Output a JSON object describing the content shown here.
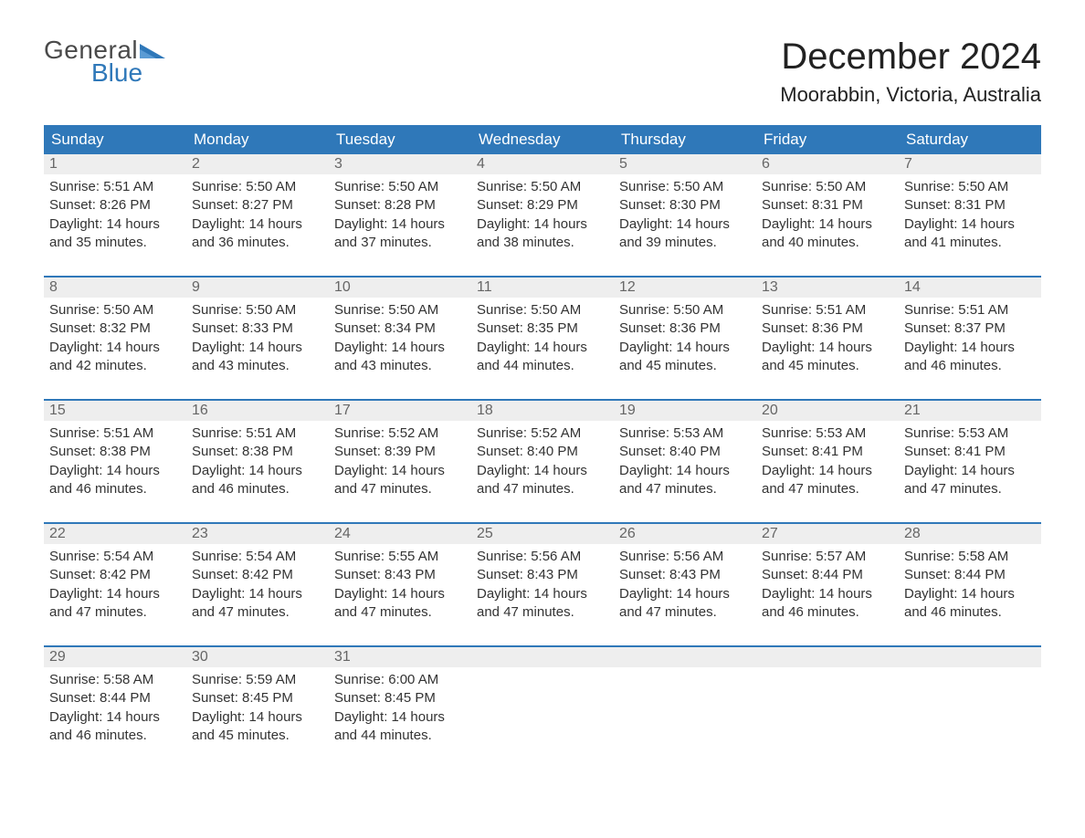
{
  "brand": {
    "line1": "General",
    "line2": "Blue",
    "accent_color": "#2f78b9"
  },
  "title": "December 2024",
  "location": "Moorabbin, Victoria, Australia",
  "colors": {
    "header_bg": "#2f78b9",
    "header_text": "#ffffff",
    "daynum_bg": "#eeeeee",
    "daynum_text": "#666666",
    "rule": "#2f78b9",
    "body_text": "#333333",
    "page_bg": "#ffffff"
  },
  "typography": {
    "title_fontsize": 40,
    "location_fontsize": 22,
    "header_fontsize": 17,
    "body_fontsize": 15,
    "font_family": "Arial"
  },
  "weekday_labels": [
    "Sunday",
    "Monday",
    "Tuesday",
    "Wednesday",
    "Thursday",
    "Friday",
    "Saturday"
  ],
  "labels": {
    "sunrise": "Sunrise:",
    "sunset": "Sunset:",
    "daylight": "Daylight:"
  },
  "weeks": [
    [
      {
        "n": "1",
        "sunrise": "5:51 AM",
        "sunset": "8:26 PM",
        "daylight": "14 hours and 35 minutes."
      },
      {
        "n": "2",
        "sunrise": "5:50 AM",
        "sunset": "8:27 PM",
        "daylight": "14 hours and 36 minutes."
      },
      {
        "n": "3",
        "sunrise": "5:50 AM",
        "sunset": "8:28 PM",
        "daylight": "14 hours and 37 minutes."
      },
      {
        "n": "4",
        "sunrise": "5:50 AM",
        "sunset": "8:29 PM",
        "daylight": "14 hours and 38 minutes."
      },
      {
        "n": "5",
        "sunrise": "5:50 AM",
        "sunset": "8:30 PM",
        "daylight": "14 hours and 39 minutes."
      },
      {
        "n": "6",
        "sunrise": "5:50 AM",
        "sunset": "8:31 PM",
        "daylight": "14 hours and 40 minutes."
      },
      {
        "n": "7",
        "sunrise": "5:50 AM",
        "sunset": "8:31 PM",
        "daylight": "14 hours and 41 minutes."
      }
    ],
    [
      {
        "n": "8",
        "sunrise": "5:50 AM",
        "sunset": "8:32 PM",
        "daylight": "14 hours and 42 minutes."
      },
      {
        "n": "9",
        "sunrise": "5:50 AM",
        "sunset": "8:33 PM",
        "daylight": "14 hours and 43 minutes."
      },
      {
        "n": "10",
        "sunrise": "5:50 AM",
        "sunset": "8:34 PM",
        "daylight": "14 hours and 43 minutes."
      },
      {
        "n": "11",
        "sunrise": "5:50 AM",
        "sunset": "8:35 PM",
        "daylight": "14 hours and 44 minutes."
      },
      {
        "n": "12",
        "sunrise": "5:50 AM",
        "sunset": "8:36 PM",
        "daylight": "14 hours and 45 minutes."
      },
      {
        "n": "13",
        "sunrise": "5:51 AM",
        "sunset": "8:36 PM",
        "daylight": "14 hours and 45 minutes."
      },
      {
        "n": "14",
        "sunrise": "5:51 AM",
        "sunset": "8:37 PM",
        "daylight": "14 hours and 46 minutes."
      }
    ],
    [
      {
        "n": "15",
        "sunrise": "5:51 AM",
        "sunset": "8:38 PM",
        "daylight": "14 hours and 46 minutes."
      },
      {
        "n": "16",
        "sunrise": "5:51 AM",
        "sunset": "8:38 PM",
        "daylight": "14 hours and 46 minutes."
      },
      {
        "n": "17",
        "sunrise": "5:52 AM",
        "sunset": "8:39 PM",
        "daylight": "14 hours and 47 minutes."
      },
      {
        "n": "18",
        "sunrise": "5:52 AM",
        "sunset": "8:40 PM",
        "daylight": "14 hours and 47 minutes."
      },
      {
        "n": "19",
        "sunrise": "5:53 AM",
        "sunset": "8:40 PM",
        "daylight": "14 hours and 47 minutes."
      },
      {
        "n": "20",
        "sunrise": "5:53 AM",
        "sunset": "8:41 PM",
        "daylight": "14 hours and 47 minutes."
      },
      {
        "n": "21",
        "sunrise": "5:53 AM",
        "sunset": "8:41 PM",
        "daylight": "14 hours and 47 minutes."
      }
    ],
    [
      {
        "n": "22",
        "sunrise": "5:54 AM",
        "sunset": "8:42 PM",
        "daylight": "14 hours and 47 minutes."
      },
      {
        "n": "23",
        "sunrise": "5:54 AM",
        "sunset": "8:42 PM",
        "daylight": "14 hours and 47 minutes."
      },
      {
        "n": "24",
        "sunrise": "5:55 AM",
        "sunset": "8:43 PM",
        "daylight": "14 hours and 47 minutes."
      },
      {
        "n": "25",
        "sunrise": "5:56 AM",
        "sunset": "8:43 PM",
        "daylight": "14 hours and 47 minutes."
      },
      {
        "n": "26",
        "sunrise": "5:56 AM",
        "sunset": "8:43 PM",
        "daylight": "14 hours and 47 minutes."
      },
      {
        "n": "27",
        "sunrise": "5:57 AM",
        "sunset": "8:44 PM",
        "daylight": "14 hours and 46 minutes."
      },
      {
        "n": "28",
        "sunrise": "5:58 AM",
        "sunset": "8:44 PM",
        "daylight": "14 hours and 46 minutes."
      }
    ],
    [
      {
        "n": "29",
        "sunrise": "5:58 AM",
        "sunset": "8:44 PM",
        "daylight": "14 hours and 46 minutes."
      },
      {
        "n": "30",
        "sunrise": "5:59 AM",
        "sunset": "8:45 PM",
        "daylight": "14 hours and 45 minutes."
      },
      {
        "n": "31",
        "sunrise": "6:00 AM",
        "sunset": "8:45 PM",
        "daylight": "14 hours and 44 minutes."
      },
      null,
      null,
      null,
      null
    ]
  ]
}
